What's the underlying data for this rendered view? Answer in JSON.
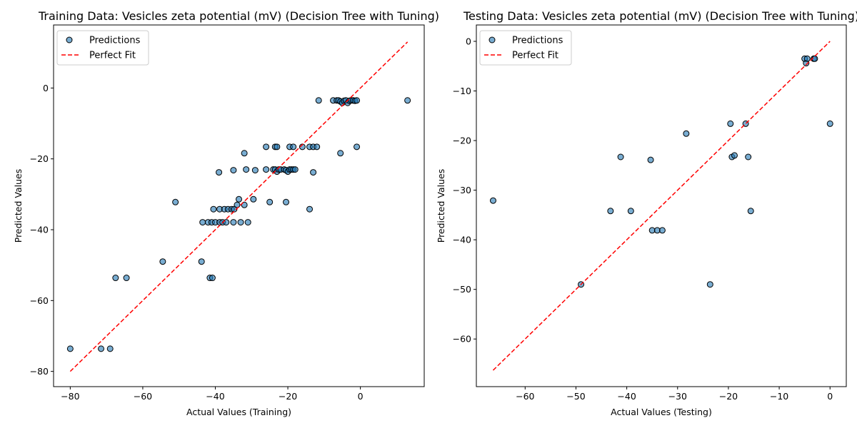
{
  "chart_data": [
    {
      "type": "scatter",
      "title": "Training Data: Vesicles zeta potential (mV) (Decision Tree with Tuning)",
      "xlabel": "Actual Values (Training)",
      "ylabel": "Predicted Values",
      "xlim": [
        -84.6,
        17.6
      ],
      "ylim": [
        -84.3,
        17.8
      ],
      "xticks": [
        -80,
        -60,
        -40,
        -20,
        0
      ],
      "yticks": [
        -80,
        -60,
        -40,
        -20,
        0
      ],
      "legend": [
        "Predictions",
        "Perfect Fit"
      ],
      "legend_position": "top-left",
      "perfect_fit": [
        [
          -80,
          -80
        ],
        [
          13,
          13
        ]
      ],
      "points": [
        [
          -80,
          -73.6
        ],
        [
          -71.5,
          -73.6
        ],
        [
          -69,
          -73.6
        ],
        [
          -67.5,
          -53.6
        ],
        [
          -64.5,
          -53.6
        ],
        [
          -41.5,
          -53.6
        ],
        [
          -40.8,
          -53.6
        ],
        [
          -54.5,
          -49
        ],
        [
          -43.8,
          -49
        ],
        [
          -51,
          -32.2
        ],
        [
          -25,
          -32.2
        ],
        [
          -20.5,
          -32.2
        ],
        [
          -14,
          -34.2
        ],
        [
          -43.5,
          -37.9
        ],
        [
          -42,
          -37.9
        ],
        [
          -41,
          -37.9
        ],
        [
          -40,
          -37.9
        ],
        [
          -38.8,
          -37.9
        ],
        [
          -38,
          -37.9
        ],
        [
          -37,
          -37.9
        ],
        [
          -35,
          -37.9
        ],
        [
          -33,
          -37.9
        ],
        [
          -31,
          -37.9
        ],
        [
          -40.5,
          -34.2
        ],
        [
          -38.8,
          -34.2
        ],
        [
          -37.5,
          -34.2
        ],
        [
          -36.5,
          -34.2
        ],
        [
          -35.5,
          -34.2
        ],
        [
          -34.8,
          -34.2
        ],
        [
          -34,
          -33
        ],
        [
          -32,
          -33
        ],
        [
          -33.5,
          -31.4
        ],
        [
          -29.5,
          -31.4
        ],
        [
          -39,
          -23.8
        ],
        [
          -35,
          -23.2
        ],
        [
          -31.5,
          -23
        ],
        [
          -29,
          -23.2
        ],
        [
          -26,
          -23
        ],
        [
          -24,
          -23
        ],
        [
          -23.5,
          -23
        ],
        [
          -23,
          -23.6
        ],
        [
          -22.5,
          -23
        ],
        [
          -22,
          -23
        ],
        [
          -21,
          -23
        ],
        [
          -20.5,
          -23.2
        ],
        [
          -20,
          -23.6
        ],
        [
          -19.5,
          -23
        ],
        [
          -19,
          -23
        ],
        [
          -18.5,
          -23
        ],
        [
          -18,
          -23
        ],
        [
          -13,
          -23.8
        ],
        [
          -32,
          -18.4
        ],
        [
          -5.5,
          -18.4
        ],
        [
          -26,
          -16.6
        ],
        [
          -23.5,
          -16.6
        ],
        [
          -23,
          -16.6
        ],
        [
          -19.5,
          -16.6
        ],
        [
          -18.5,
          -16.6
        ],
        [
          -16,
          -16.6
        ],
        [
          -14,
          -16.6
        ],
        [
          -13,
          -16.6
        ],
        [
          -12,
          -16.6
        ],
        [
          -1,
          -16.6
        ],
        [
          -11.5,
          -3.5
        ],
        [
          -7.5,
          -3.5
        ],
        [
          -6.5,
          -3.5
        ],
        [
          -6,
          -3.5
        ],
        [
          -5.5,
          -3.8
        ],
        [
          -5,
          -4.2
        ],
        [
          -4.5,
          -3.6
        ],
        [
          -4,
          -3.5
        ],
        [
          -3.5,
          -4.2
        ],
        [
          -3,
          -3.6
        ],
        [
          -2.5,
          -3.5
        ],
        [
          -2,
          -3.5
        ],
        [
          -1.5,
          -3.6
        ],
        [
          -1,
          -3.5
        ],
        [
          13,
          -3.5
        ]
      ]
    },
    {
      "type": "scatter",
      "title": "Testing Data: Vesicles zeta potential (mV) (Decision Tree with Tuning)",
      "xlabel": "Actual Values (Testing)",
      "ylabel": "Predicted Values",
      "xlim": [
        -69.6,
        3.2
      ],
      "ylim": [
        -69.6,
        3.3
      ],
      "xticks": [
        -60,
        -50,
        -40,
        -30,
        -20,
        -10,
        0
      ],
      "yticks": [
        -60,
        -50,
        -40,
        -30,
        -20,
        -10,
        0
      ],
      "legend": [
        "Predictions",
        "Perfect Fit"
      ],
      "legend_position": "top-left",
      "perfect_fit": [
        [
          -66.3,
          -66.3
        ],
        [
          0,
          0
        ]
      ],
      "points": [
        [
          -66.3,
          -32.1
        ],
        [
          -49,
          -49
        ],
        [
          -43.2,
          -34.2
        ],
        [
          -41.2,
          -23.3
        ],
        [
          -39.2,
          -34.2
        ],
        [
          -35.3,
          -23.9
        ],
        [
          -35,
          -38.1
        ],
        [
          -34,
          -38.1
        ],
        [
          -33,
          -38.1
        ],
        [
          -28.3,
          -18.6
        ],
        [
          -23.6,
          -49
        ],
        [
          -19.6,
          -16.6
        ],
        [
          -19.3,
          -23.3
        ],
        [
          -18.8,
          -23
        ],
        [
          -16.6,
          -16.6
        ],
        [
          -16.1,
          -23.3
        ],
        [
          -15.6,
          -34.2
        ],
        [
          -5,
          -3.5
        ],
        [
          -4.7,
          -4.4
        ],
        [
          -4.5,
          -3.5
        ],
        [
          -3.2,
          -3.5
        ],
        [
          -3,
          -3.5
        ],
        [
          0,
          -16.6
        ]
      ]
    }
  ],
  "colors": {
    "marker_fill": "#1f77b4",
    "marker_edge": "#000000",
    "perfect_fit": "#ff0000",
    "axis": "#000000"
  }
}
